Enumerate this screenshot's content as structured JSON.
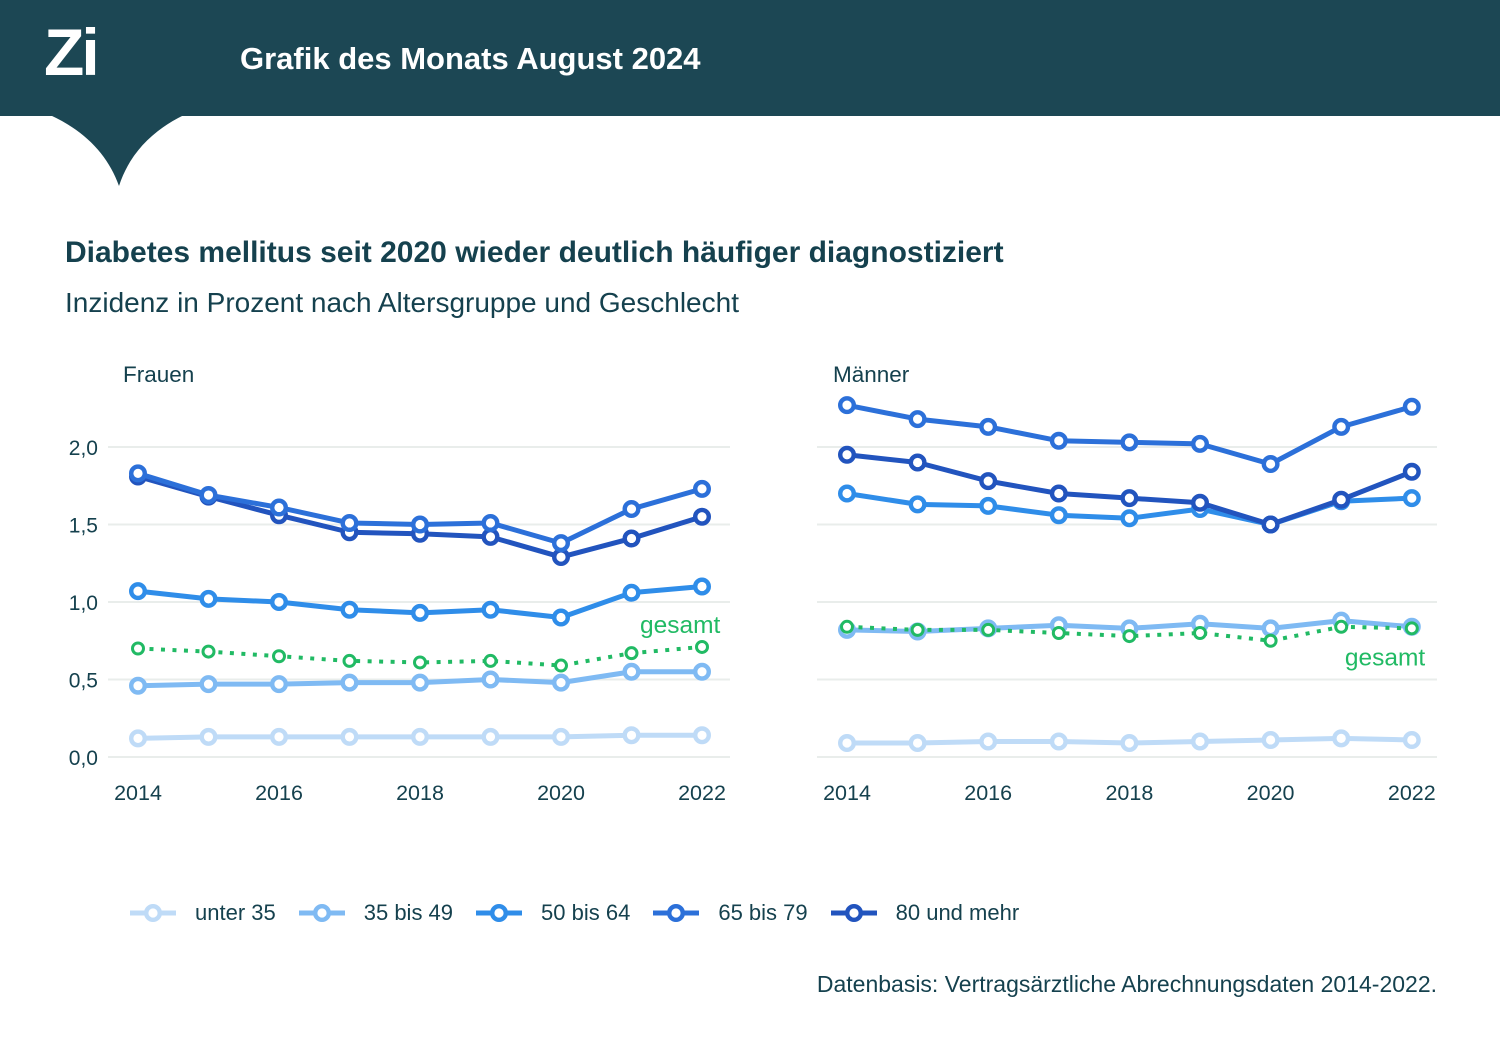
{
  "header": {
    "logo_text": "Zi",
    "title": "Grafik des Monats August 2024",
    "bg_color": "#1C4754",
    "text_color": "#FFFFFF"
  },
  "titles": {
    "heading": "Diabetes mellitus seit 2020 wieder deutlich häufiger diagnostiziert",
    "subheading": "Inzidenz in Prozent nach Altersgruppe und Geschlecht"
  },
  "colors": {
    "text": "#15414E",
    "grid": "#E9EDEB",
    "unter_35": "#BFDBF7",
    "age_35_49": "#7FBAF3",
    "age_50_64": "#2F8DE9",
    "age_65_79": "#2C70D9",
    "age_80_plus": "#2254BE",
    "gesamt_green": "#21BA64"
  },
  "legend": [
    {
      "label": "unter 35",
      "color": "#BFDBF7"
    },
    {
      "label": "35 bis 49",
      "color": "#7FBAF3"
    },
    {
      "label": "50 bis 64",
      "color": "#2F8DE9"
    },
    {
      "label": "65 bis 79",
      "color": "#2C70D9"
    },
    {
      "label": "80 und mehr",
      "color": "#2254BE"
    }
  ],
  "footer": "Datenbasis: Vertragsärztliche Abrechnungsdaten 2014-2022.",
  "chart_data": [
    {
      "type": "line",
      "title": "Frauen",
      "x": [
        2014,
        2015,
        2016,
        2017,
        2018,
        2019,
        2020,
        2021,
        2022
      ],
      "xticks": [
        "2014",
        "2016",
        "2018",
        "2020",
        "2022"
      ],
      "ylim": [
        0.0,
        2.35
      ],
      "yticks": [
        0.0,
        0.5,
        1.0,
        1.5,
        2.0
      ],
      "ytick_labels": [
        "0,0",
        "0,5",
        "1,0",
        "1,5",
        "2,0"
      ],
      "show_y_labels": true,
      "grid": true,
      "annotation": {
        "text": "gesamt",
        "x_index": 8.26,
        "y": 0.8,
        "color": "#21BA64"
      },
      "series": [
        {
          "name": "unter 35",
          "color": "#BFDBF7",
          "style": "solid",
          "values": [
            0.12,
            0.13,
            0.13,
            0.13,
            0.13,
            0.13,
            0.13,
            0.14,
            0.14
          ]
        },
        {
          "name": "35 bis 49",
          "color": "#7FBAF3",
          "style": "solid",
          "values": [
            0.46,
            0.47,
            0.47,
            0.48,
            0.48,
            0.5,
            0.48,
            0.55,
            0.55
          ]
        },
        {
          "name": "gesamt",
          "color": "#21BA64",
          "style": "dotted",
          "values": [
            0.7,
            0.68,
            0.65,
            0.62,
            0.61,
            0.62,
            0.59,
            0.67,
            0.71
          ]
        },
        {
          "name": "50 bis 64",
          "color": "#2F8DE9",
          "style": "solid",
          "values": [
            1.07,
            1.02,
            1.0,
            0.95,
            0.93,
            0.95,
            0.9,
            1.06,
            1.1
          ]
        },
        {
          "name": "80 und mehr",
          "color": "#2254BE",
          "style": "solid",
          "values": [
            1.81,
            1.68,
            1.56,
            1.45,
            1.44,
            1.42,
            1.29,
            1.41,
            1.55
          ]
        },
        {
          "name": "65 bis 79",
          "color": "#2C70D9",
          "style": "solid",
          "values": [
            1.83,
            1.69,
            1.61,
            1.51,
            1.5,
            1.51,
            1.38,
            1.6,
            1.73
          ]
        }
      ]
    },
    {
      "type": "line",
      "title": "Männer",
      "x": [
        2014,
        2015,
        2016,
        2017,
        2018,
        2019,
        2020,
        2021,
        2022
      ],
      "xticks": [
        "2014",
        "2016",
        "2018",
        "2020",
        "2022"
      ],
      "ylim": [
        0.0,
        2.35
      ],
      "yticks": [
        0.0,
        0.5,
        1.0,
        1.5,
        2.0
      ],
      "ytick_labels": [
        "0,0",
        "0,5",
        "1,0",
        "1,5",
        "2,0"
      ],
      "show_y_labels": false,
      "grid": true,
      "annotation": {
        "text": "gesamt",
        "x_index": 8.19,
        "y": 0.59,
        "color": "#21BA64"
      },
      "series": [
        {
          "name": "unter 35",
          "color": "#BFDBF7",
          "style": "solid",
          "values": [
            0.09,
            0.09,
            0.1,
            0.1,
            0.09,
            0.1,
            0.11,
            0.12,
            0.11
          ]
        },
        {
          "name": "35 bis 49",
          "color": "#7FBAF3",
          "style": "solid",
          "values": [
            0.82,
            0.81,
            0.83,
            0.85,
            0.83,
            0.86,
            0.83,
            0.88,
            0.84
          ]
        },
        {
          "name": "gesamt",
          "color": "#21BA64",
          "style": "dotted",
          "values": [
            0.84,
            0.82,
            0.82,
            0.8,
            0.78,
            0.8,
            0.75,
            0.84,
            0.83
          ]
        },
        {
          "name": "50 bis 64",
          "color": "#2F8DE9",
          "style": "solid",
          "values": [
            1.7,
            1.63,
            1.62,
            1.56,
            1.54,
            1.6,
            1.5,
            1.65,
            1.67
          ]
        },
        {
          "name": "80 und mehr",
          "color": "#2254BE",
          "style": "solid",
          "values": [
            1.95,
            1.9,
            1.78,
            1.7,
            1.67,
            1.64,
            1.5,
            1.66,
            1.84
          ]
        },
        {
          "name": "65 bis 79",
          "color": "#2C70D9",
          "style": "solid",
          "values": [
            2.27,
            2.18,
            2.13,
            2.04,
            2.03,
            2.02,
            1.89,
            2.13,
            2.26
          ]
        }
      ]
    }
  ]
}
